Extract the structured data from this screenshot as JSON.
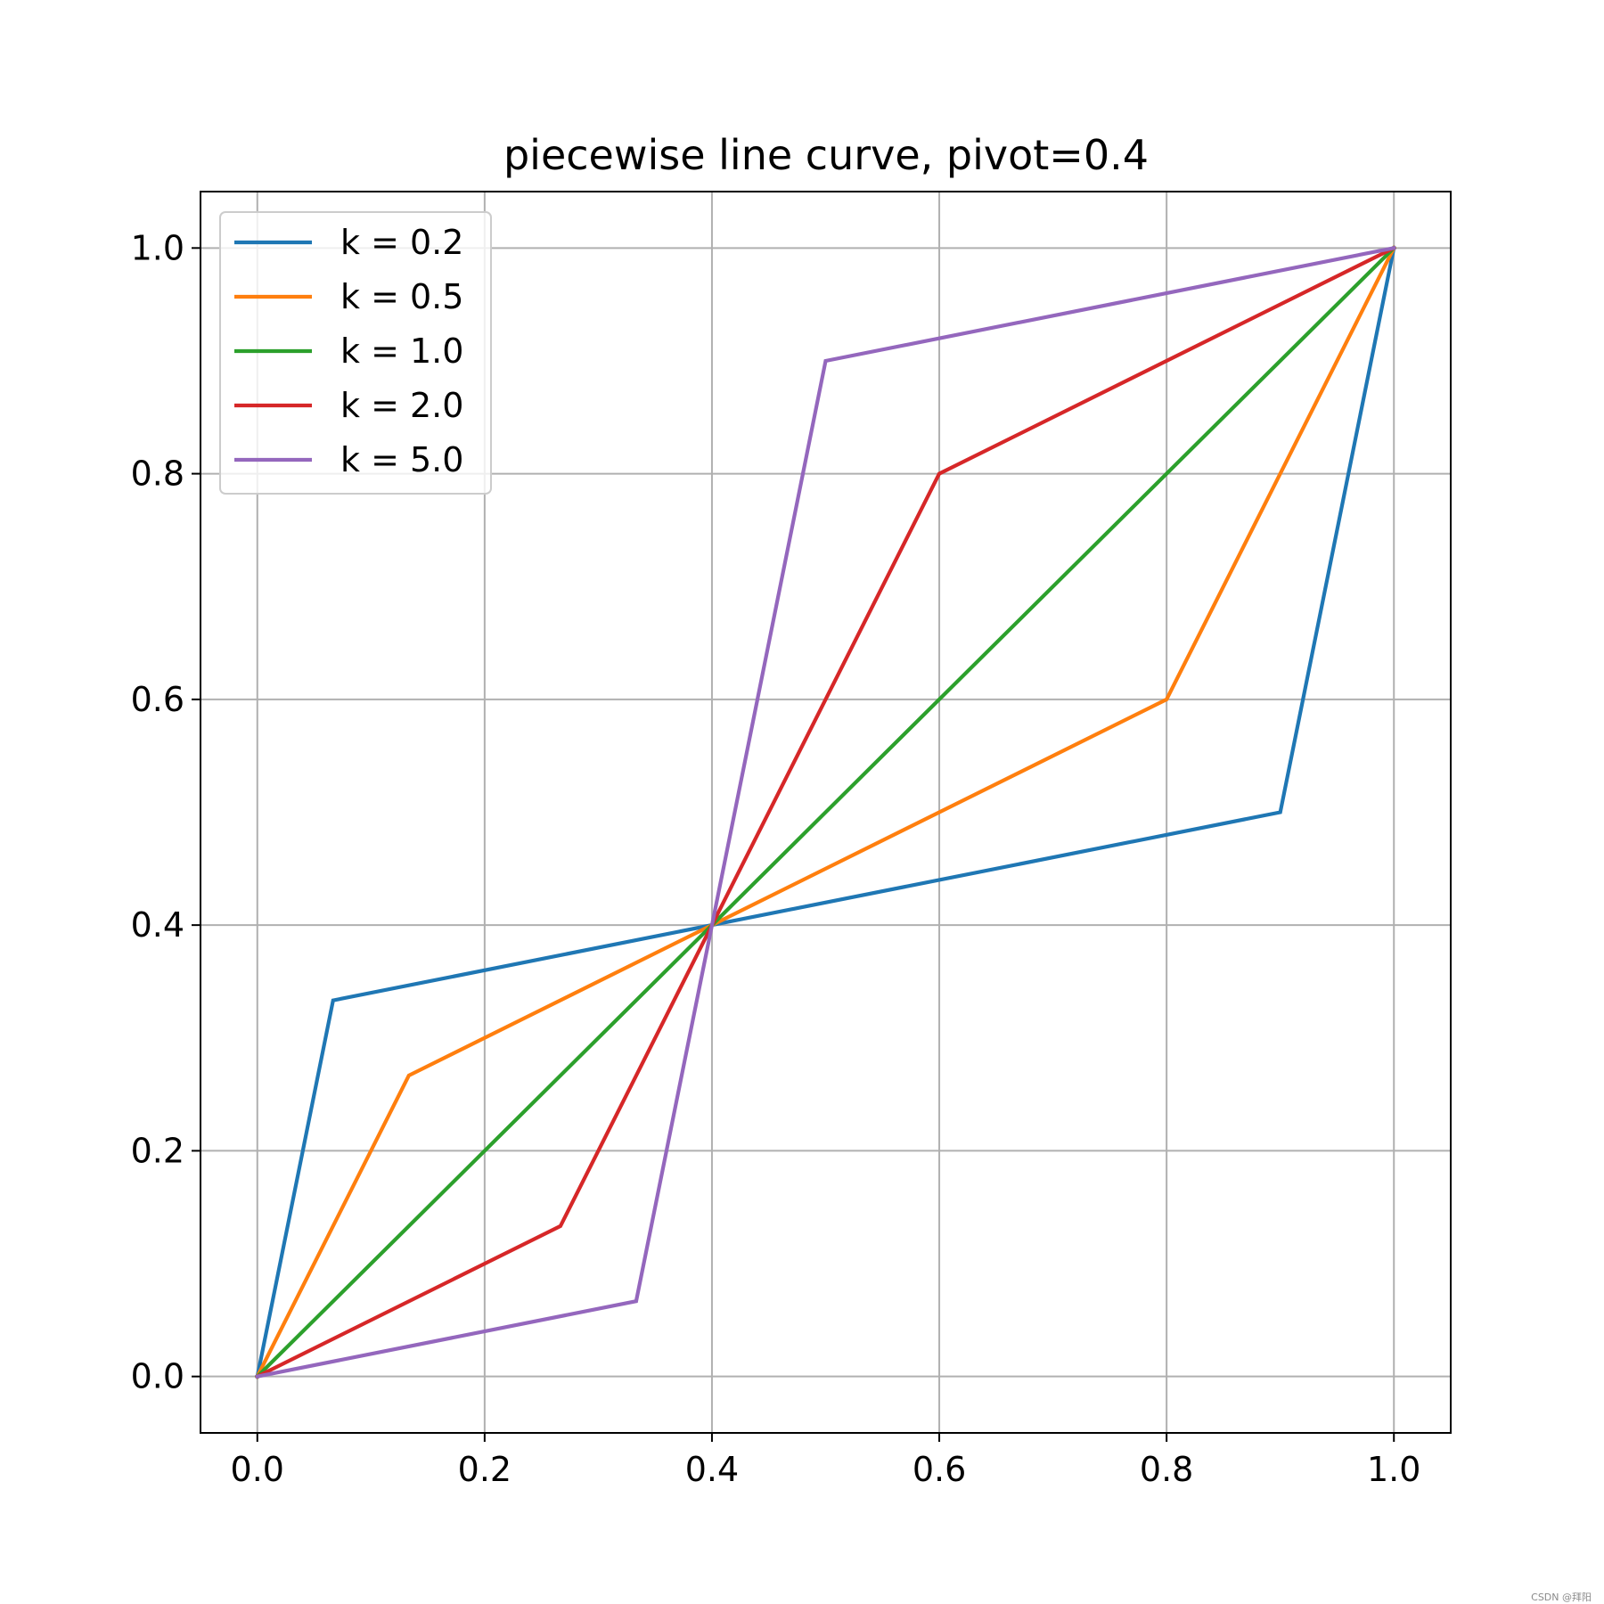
{
  "chart_data": {
    "type": "line",
    "title": "piecewise line curve, pivot=0.4",
    "xlabel": "",
    "ylabel": "",
    "xlim": [
      -0.05,
      1.05
    ],
    "ylim": [
      -0.05,
      1.05
    ],
    "xticks": [
      "0.0",
      "0.2",
      "0.4",
      "0.6",
      "0.8",
      "1.0"
    ],
    "yticks": [
      "0.0",
      "0.2",
      "0.4",
      "0.6",
      "0.8",
      "1.0"
    ],
    "grid": true,
    "legend_position": "top-left",
    "series": [
      {
        "name": "k = 0.2",
        "color": "#1f77b4",
        "x": [
          0.0,
          0.0667,
          0.4,
          0.9,
          1.0
        ],
        "y": [
          0.0,
          0.3333,
          0.4,
          0.5,
          1.0
        ]
      },
      {
        "name": "k = 0.5",
        "color": "#ff7f0e",
        "x": [
          0.0,
          0.1333,
          0.4,
          0.8,
          1.0
        ],
        "y": [
          0.0,
          0.2667,
          0.4,
          0.6,
          1.0
        ]
      },
      {
        "name": "k = 1.0",
        "color": "#2ca02c",
        "x": [
          0.0,
          0.4,
          1.0
        ],
        "y": [
          0.0,
          0.4,
          1.0
        ]
      },
      {
        "name": "k = 2.0",
        "color": "#d62728",
        "x": [
          0.0,
          0.2667,
          0.4,
          0.6,
          1.0
        ],
        "y": [
          0.0,
          0.1333,
          0.4,
          0.8,
          1.0
        ]
      },
      {
        "name": "k = 5.0",
        "color": "#9467bd",
        "x": [
          0.0,
          0.3333,
          0.4,
          0.5,
          1.0
        ],
        "y": [
          0.0,
          0.0667,
          0.4,
          0.9,
          1.0
        ]
      }
    ]
  },
  "watermark": "CSDN @拜阳"
}
